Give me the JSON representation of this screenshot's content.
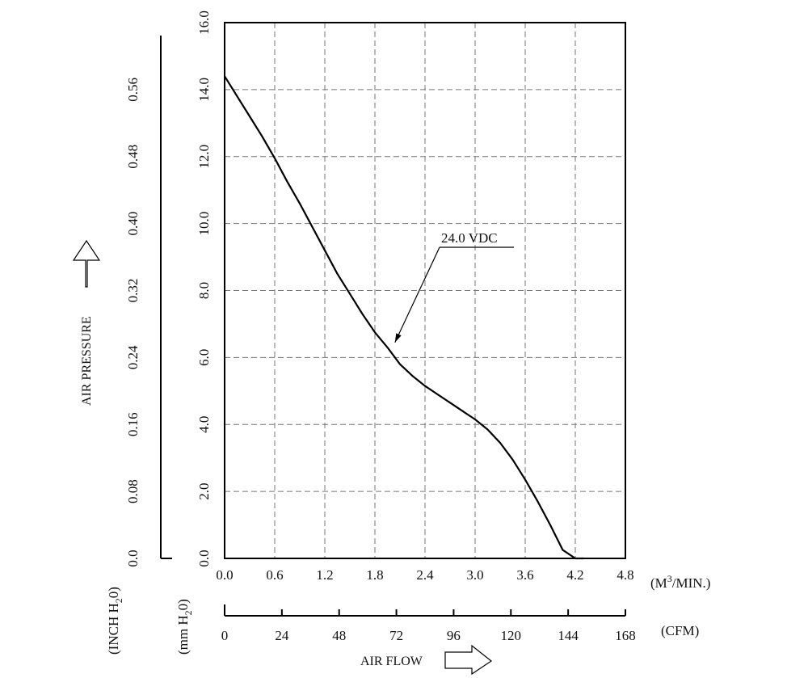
{
  "chart_data": {
    "type": "line",
    "series": [
      {
        "name": "24.0 VDC",
        "x": [
          0.0,
          0.15,
          0.3,
          0.45,
          0.6,
          0.75,
          0.9,
          1.05,
          1.2,
          1.35,
          1.5,
          1.65,
          1.8,
          1.95,
          2.1,
          2.25,
          2.4,
          2.55,
          2.7,
          2.85,
          3.0,
          3.15,
          3.3,
          3.45,
          3.6,
          3.75,
          3.9,
          4.05,
          4.2,
          4.3
        ],
        "y": [
          14.4,
          13.8,
          13.2,
          12.6,
          11.95,
          11.25,
          10.6,
          9.9,
          9.2,
          8.5,
          7.9,
          7.3,
          6.75,
          6.3,
          5.8,
          5.45,
          5.15,
          4.9,
          4.65,
          4.4,
          4.15,
          3.85,
          3.45,
          2.95,
          2.35,
          1.7,
          1.0,
          0.25,
          -0.4,
          -0.05
        ]
      }
    ],
    "annotation": "24.0 VDC",
    "x_axis": {
      "label": "AIR FLOW",
      "unit": "(M3/MIN.)",
      "unit_parts": [
        "(M",
        "3",
        "/MIN.)"
      ],
      "range": [
        0,
        4.8
      ],
      "ticks": [
        "0.0",
        "0.6",
        "1.2",
        "1.8",
        "2.4",
        "3.0",
        "3.6",
        "4.2",
        "4.8"
      ]
    },
    "x_axis_secondary": {
      "unit": "(CFM)",
      "range": [
        0,
        168
      ],
      "ticks": [
        "0",
        "24",
        "48",
        "72",
        "96",
        "120",
        "144",
        "168"
      ]
    },
    "y_axis": {
      "label": "AIR PRESSURE",
      "unit": "(mm H2O)",
      "unit_parts": [
        "(mm H",
        "2",
        "0)"
      ],
      "range": [
        0,
        16
      ],
      "ticks": [
        "0.0",
        "2.0",
        "4.0",
        "6.0",
        "8.0",
        "10.0",
        "12.0",
        "14.0",
        "16.0"
      ]
    },
    "y_axis_secondary": {
      "unit": "(INCH H2O)",
      "unit_parts": [
        "(INCH H",
        "2",
        "0)"
      ],
      "range": [
        0,
        0.64
      ],
      "ticks": [
        "0.0",
        "0.08",
        "0.16",
        "0.24",
        "0.32",
        "0.40",
        "0.48",
        "0.56"
      ]
    },
    "grid": true
  }
}
